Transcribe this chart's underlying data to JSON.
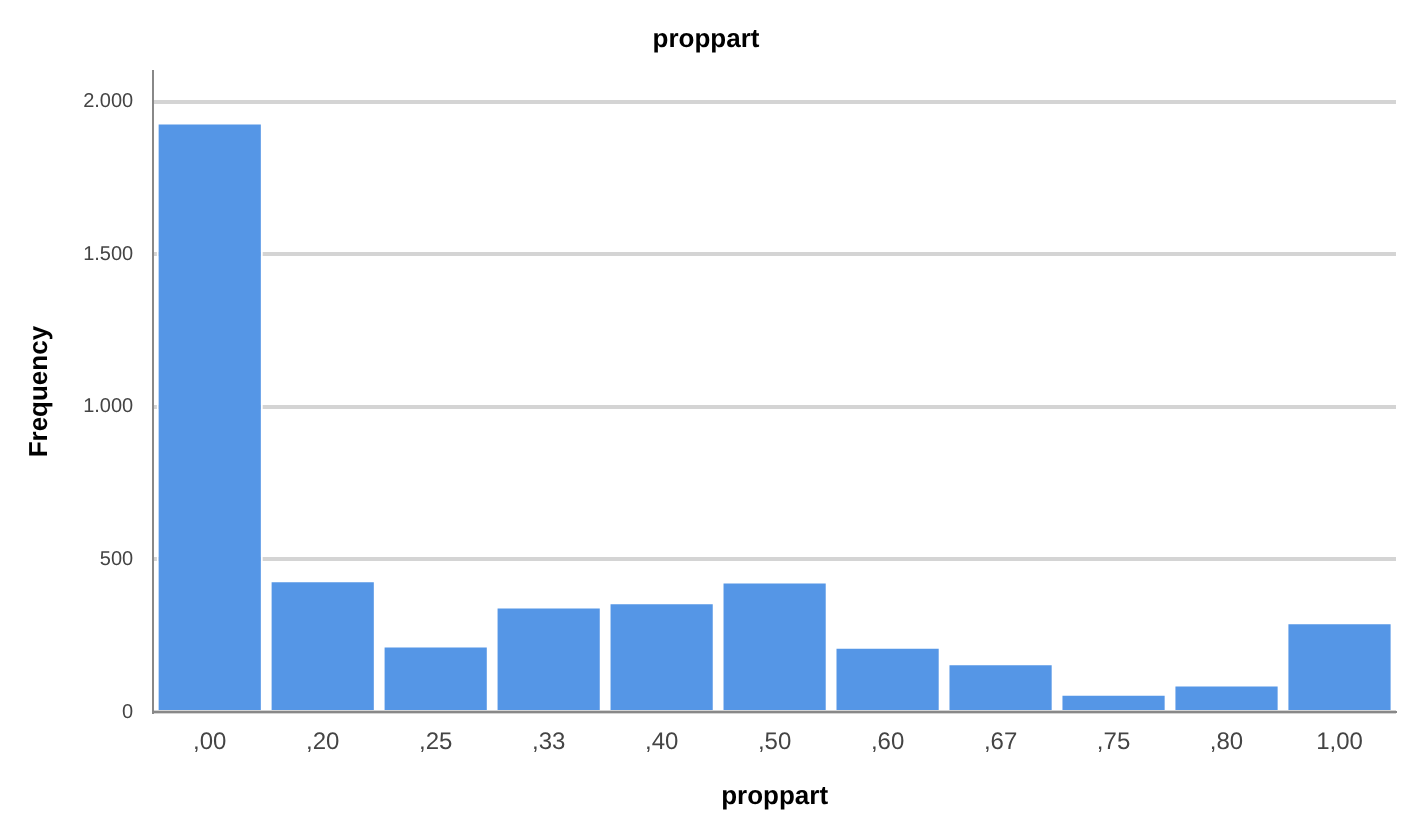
{
  "chart_data": {
    "type": "bar",
    "title": "proppart",
    "xlabel": "proppart",
    "ylabel": "Frequency",
    "categories": [
      ",00",
      ",20",
      ",25",
      ",33",
      ",40",
      ",50",
      ",60",
      ",67",
      ",75",
      ",80",
      "1,00"
    ],
    "values": [
      1932,
      432,
      218,
      346,
      360,
      428,
      214,
      160,
      60,
      90,
      294
    ],
    "color": "#5596e6",
    "ylim": [
      0,
      2100
    ],
    "yticks": [
      {
        "value": 0,
        "label": "0"
      },
      {
        "value": 500,
        "label": "500"
      },
      {
        "value": 1000,
        "label": "1.000"
      },
      {
        "value": 1500,
        "label": "1.500"
      },
      {
        "value": 2000,
        "label": "2.000"
      }
    ],
    "grid": "y"
  }
}
